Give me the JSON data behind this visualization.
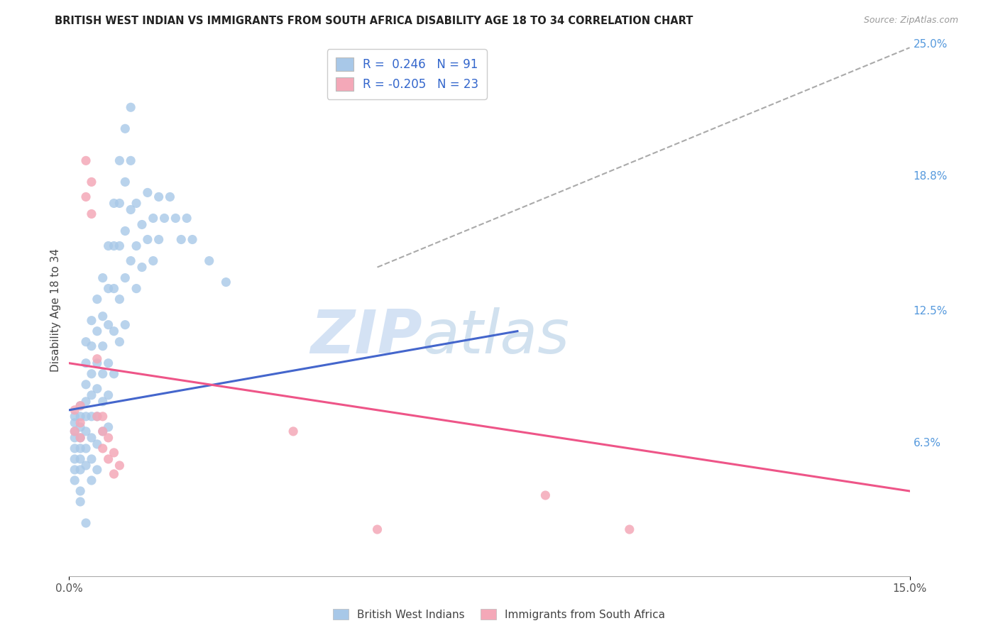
{
  "title": "BRITISH WEST INDIAN VS IMMIGRANTS FROM SOUTH AFRICA DISABILITY AGE 18 TO 34 CORRELATION CHART",
  "source": "Source: ZipAtlas.com",
  "ylabel": "Disability Age 18 to 34",
  "xlim": [
    0.0,
    0.15
  ],
  "ylim": [
    0.0,
    0.25
  ],
  "ytick_labels_right": [
    "25.0%",
    "18.8%",
    "12.5%",
    "6.3%"
  ],
  "ytick_vals_right": [
    0.25,
    0.188,
    0.125,
    0.063
  ],
  "r_blue": 0.246,
  "n_blue": 91,
  "r_pink": -0.205,
  "n_pink": 23,
  "legend_label_blue": "British West Indians",
  "legend_label_pink": "Immigrants from South Africa",
  "blue_color": "#a8c8e8",
  "pink_color": "#f4a8b8",
  "line_blue": "#4466cc",
  "line_pink": "#ee5588",
  "dashed_line_color": "#aaaaaa",
  "watermark_zip": "ZIP",
  "watermark_atlas": "atlas",
  "background_color": "#ffffff",
  "grid_color": "#dddddd",
  "blue_scatter": [
    [
      0.001,
      0.075
    ],
    [
      0.001,
      0.072
    ],
    [
      0.001,
      0.068
    ],
    [
      0.001,
      0.065
    ],
    [
      0.001,
      0.06
    ],
    [
      0.001,
      0.055
    ],
    [
      0.001,
      0.05
    ],
    [
      0.001,
      0.045
    ],
    [
      0.002,
      0.08
    ],
    [
      0.002,
      0.075
    ],
    [
      0.002,
      0.07
    ],
    [
      0.002,
      0.065
    ],
    [
      0.002,
      0.06
    ],
    [
      0.002,
      0.055
    ],
    [
      0.002,
      0.05
    ],
    [
      0.002,
      0.04
    ],
    [
      0.002,
      0.035
    ],
    [
      0.003,
      0.11
    ],
    [
      0.003,
      0.1
    ],
    [
      0.003,
      0.09
    ],
    [
      0.003,
      0.082
    ],
    [
      0.003,
      0.075
    ],
    [
      0.003,
      0.068
    ],
    [
      0.003,
      0.06
    ],
    [
      0.003,
      0.052
    ],
    [
      0.003,
      0.025
    ],
    [
      0.004,
      0.12
    ],
    [
      0.004,
      0.108
    ],
    [
      0.004,
      0.095
    ],
    [
      0.004,
      0.085
    ],
    [
      0.004,
      0.075
    ],
    [
      0.004,
      0.065
    ],
    [
      0.004,
      0.055
    ],
    [
      0.004,
      0.045
    ],
    [
      0.005,
      0.13
    ],
    [
      0.005,
      0.115
    ],
    [
      0.005,
      0.1
    ],
    [
      0.005,
      0.088
    ],
    [
      0.005,
      0.075
    ],
    [
      0.005,
      0.062
    ],
    [
      0.005,
      0.05
    ],
    [
      0.006,
      0.14
    ],
    [
      0.006,
      0.122
    ],
    [
      0.006,
      0.108
    ],
    [
      0.006,
      0.095
    ],
    [
      0.006,
      0.082
    ],
    [
      0.006,
      0.068
    ],
    [
      0.007,
      0.155
    ],
    [
      0.007,
      0.135
    ],
    [
      0.007,
      0.118
    ],
    [
      0.007,
      0.1
    ],
    [
      0.007,
      0.085
    ],
    [
      0.007,
      0.07
    ],
    [
      0.008,
      0.175
    ],
    [
      0.008,
      0.155
    ],
    [
      0.008,
      0.135
    ],
    [
      0.008,
      0.115
    ],
    [
      0.008,
      0.095
    ],
    [
      0.009,
      0.195
    ],
    [
      0.009,
      0.175
    ],
    [
      0.009,
      0.155
    ],
    [
      0.009,
      0.13
    ],
    [
      0.009,
      0.11
    ],
    [
      0.01,
      0.21
    ],
    [
      0.01,
      0.185
    ],
    [
      0.01,
      0.162
    ],
    [
      0.01,
      0.14
    ],
    [
      0.01,
      0.118
    ],
    [
      0.011,
      0.22
    ],
    [
      0.011,
      0.195
    ],
    [
      0.011,
      0.172
    ],
    [
      0.011,
      0.148
    ],
    [
      0.012,
      0.175
    ],
    [
      0.012,
      0.155
    ],
    [
      0.012,
      0.135
    ],
    [
      0.013,
      0.165
    ],
    [
      0.013,
      0.145
    ],
    [
      0.014,
      0.18
    ],
    [
      0.014,
      0.158
    ],
    [
      0.015,
      0.168
    ],
    [
      0.015,
      0.148
    ],
    [
      0.016,
      0.178
    ],
    [
      0.016,
      0.158
    ],
    [
      0.017,
      0.168
    ],
    [
      0.018,
      0.178
    ],
    [
      0.019,
      0.168
    ],
    [
      0.02,
      0.158
    ],
    [
      0.021,
      0.168
    ],
    [
      0.022,
      0.158
    ],
    [
      0.025,
      0.148
    ],
    [
      0.028,
      0.138
    ]
  ],
  "pink_scatter": [
    [
      0.001,
      0.078
    ],
    [
      0.001,
      0.068
    ],
    [
      0.002,
      0.08
    ],
    [
      0.002,
      0.072
    ],
    [
      0.002,
      0.065
    ],
    [
      0.003,
      0.195
    ],
    [
      0.003,
      0.178
    ],
    [
      0.004,
      0.185
    ],
    [
      0.004,
      0.17
    ],
    [
      0.005,
      0.102
    ],
    [
      0.005,
      0.075
    ],
    [
      0.006,
      0.075
    ],
    [
      0.006,
      0.068
    ],
    [
      0.006,
      0.06
    ],
    [
      0.007,
      0.065
    ],
    [
      0.007,
      0.055
    ],
    [
      0.008,
      0.058
    ],
    [
      0.008,
      0.048
    ],
    [
      0.009,
      0.052
    ],
    [
      0.04,
      0.068
    ],
    [
      0.055,
      0.022
    ],
    [
      0.085,
      0.038
    ],
    [
      0.1,
      0.022
    ]
  ],
  "blue_line_x": [
    0.0,
    0.08
  ],
  "blue_line_y": [
    0.078,
    0.115
  ],
  "pink_line_x": [
    0.0,
    0.15
  ],
  "pink_line_y": [
    0.1,
    0.04
  ],
  "dashed_line_x": [
    0.055,
    0.15
  ],
  "dashed_line_y": [
    0.145,
    0.248
  ]
}
